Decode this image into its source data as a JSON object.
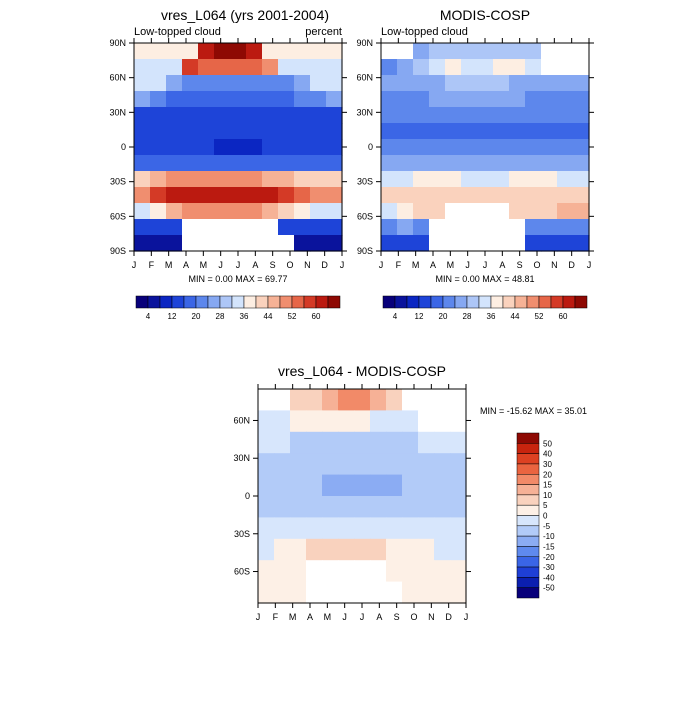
{
  "chart_data": [
    {
      "type": "heatmap",
      "title": "vres_L064 (yrs 2001-2004)",
      "subtitle_left": "Low-topped cloud",
      "subtitle_right": "percent",
      "stats": "MIN =   0.00 MAX =  69.77",
      "x_ticks": [
        "J",
        "F",
        "M",
        "A",
        "M",
        "J",
        "J",
        "A",
        "S",
        "O",
        "N",
        "D",
        "J"
      ],
      "y_ticks": [
        "90N",
        "60N",
        "30N",
        "0",
        "30S",
        "60S",
        "90S"
      ],
      "ylim": [
        90,
        -90
      ],
      "palette": [
        "#08007a",
        "#0a139c",
        "#0b26c2",
        "#1e44d8",
        "#3b66e6",
        "#5d87ec",
        "#86a8f2",
        "#adc6f7",
        "#d3e4fc",
        "#fdeee2",
        "#fad2bd",
        "#f6b296",
        "#f08e6f",
        "#e66648",
        "#d43a26",
        "#bb1a10",
        "#8e0903"
      ],
      "colorbar_labels": [
        "4",
        "12",
        "20",
        "28",
        "36",
        "44",
        "52",
        "60"
      ],
      "values": [
        [
          9,
          9,
          9,
          9,
          15,
          16,
          16,
          15,
          9,
          9,
          9,
          9,
          9
        ],
        [
          8,
          8,
          8,
          14,
          13,
          13,
          13,
          13,
          12,
          8,
          8,
          8,
          8
        ],
        [
          8,
          8,
          6,
          5,
          5,
          5,
          5,
          5,
          5,
          5,
          6,
          8,
          8
        ],
        [
          6,
          5,
          4,
          4,
          4,
          4,
          4,
          4,
          4,
          4,
          5,
          5,
          6
        ],
        [
          3,
          3,
          3,
          3,
          3,
          3,
          3,
          3,
          3,
          3,
          3,
          3,
          3
        ],
        [
          3,
          3,
          3,
          3,
          3,
          3,
          3,
          3,
          3,
          3,
          3,
          3,
          3
        ],
        [
          3,
          3,
          3,
          3,
          3,
          2,
          2,
          2,
          3,
          3,
          3,
          3,
          3
        ],
        [
          4,
          4,
          4,
          4,
          4,
          4,
          4,
          4,
          4,
          4,
          4,
          4,
          4
        ],
        [
          10,
          11,
          12,
          12,
          12,
          12,
          12,
          12,
          11,
          11,
          10,
          10,
          10
        ],
        [
          12,
          14,
          15,
          15,
          15,
          15,
          15,
          15,
          15,
          14,
          13,
          12,
          12
        ],
        [
          8,
          9,
          11,
          12,
          12,
          12,
          12,
          12,
          11,
          10,
          9,
          8,
          8
        ],
        [
          3,
          3,
          3,
          -1,
          -1,
          -1,
          -1,
          -1,
          -1,
          3,
          3,
          3,
          3
        ],
        [
          1,
          1,
          1,
          -1,
          -1,
          -1,
          -1,
          -1,
          -1,
          -1,
          1,
          1,
          1
        ]
      ]
    },
    {
      "type": "heatmap",
      "title": "MODIS-COSP",
      "subtitle_left": "Low-topped cloud",
      "stats": "MIN =   0.00 MAX =  48.81",
      "x_ticks": [
        "J",
        "F",
        "M",
        "A",
        "M",
        "J",
        "J",
        "A",
        "S",
        "O",
        "N",
        "D",
        "J"
      ],
      "y_ticks": [
        "90N",
        "60N",
        "30N",
        "0",
        "30S",
        "60S",
        "90S"
      ],
      "ylim": [
        90,
        -90
      ],
      "palette": [
        "#08007a",
        "#0a139c",
        "#0b26c2",
        "#1e44d8",
        "#3b66e6",
        "#5d87ec",
        "#86a8f2",
        "#adc6f7",
        "#d3e4fc",
        "#fdeee2",
        "#fad2bd",
        "#f6b296",
        "#f08e6f",
        "#e66648",
        "#d43a26",
        "#bb1a10",
        "#8e0903"
      ],
      "colorbar_labels": [
        "4",
        "12",
        "20",
        "28",
        "36",
        "44",
        "52",
        "60"
      ],
      "values": [
        [
          -1,
          -1,
          6,
          7,
          7,
          7,
          7,
          7,
          7,
          7,
          -1,
          -1,
          -1
        ],
        [
          5,
          6,
          7,
          8,
          9,
          8,
          8,
          9,
          9,
          8,
          -1,
          -1,
          -1
        ],
        [
          6,
          6,
          6,
          6,
          7,
          7,
          7,
          7,
          6,
          6,
          6,
          6,
          6
        ],
        [
          5,
          5,
          5,
          6,
          6,
          6,
          6,
          6,
          6,
          5,
          5,
          5,
          5
        ],
        [
          5,
          5,
          5,
          5,
          5,
          5,
          5,
          5,
          5,
          5,
          5,
          5,
          5
        ],
        [
          4,
          4,
          4,
          4,
          4,
          4,
          4,
          4,
          4,
          4,
          4,
          4,
          4
        ],
        [
          5,
          5,
          5,
          5,
          5,
          5,
          5,
          5,
          5,
          5,
          5,
          5,
          5
        ],
        [
          6,
          6,
          6,
          6,
          6,
          6,
          6,
          6,
          6,
          6,
          6,
          6,
          6
        ],
        [
          8,
          8,
          9,
          9,
          9,
          8,
          8,
          8,
          9,
          9,
          9,
          8,
          8
        ],
        [
          10,
          10,
          10,
          10,
          10,
          10,
          10,
          10,
          10,
          10,
          10,
          10,
          10
        ],
        [
          8,
          9,
          10,
          10,
          -1,
          -1,
          -1,
          -1,
          10,
          10,
          10,
          11,
          11
        ],
        [
          5,
          6,
          5,
          -1,
          -1,
          -1,
          -1,
          -1,
          -1,
          5,
          5,
          5,
          5
        ],
        [
          3,
          3,
          3,
          -1,
          -1,
          -1,
          -1,
          -1,
          -1,
          3,
          3,
          3,
          3
        ]
      ]
    },
    {
      "type": "heatmap",
      "title": "vres_L064 - MODIS-COSP",
      "stats": "MIN = -15.62 MAX =  35.01",
      "x_ticks": [
        "J",
        "F",
        "M",
        "A",
        "M",
        "J",
        "J",
        "A",
        "S",
        "O",
        "N",
        "D",
        "J"
      ],
      "y_ticks": [
        "60N",
        "30N",
        "0",
        "30S",
        "60S"
      ],
      "ylim": [
        85,
        -85
      ],
      "palette": [
        "#08007a",
        "#0b1fb0",
        "#1e3fd6",
        "#3a65e6",
        "#5f8aee",
        "#8bacf3",
        "#b2cbf8",
        "#d7e6fc",
        "#fdf0e6",
        "#f9d2be",
        "#f6b196",
        "#f28a68",
        "#ea6440",
        "#dd4122",
        "#c8240e",
        "#8e0903"
      ],
      "colorbar_labels": [
        "50",
        "40",
        "30",
        "20",
        "15",
        "10",
        "5",
        "0",
        "-5",
        "-10",
        "-15",
        "-20",
        "-30",
        "-40",
        "-50"
      ],
      "values": [
        [
          -1,
          -1,
          9,
          9,
          10,
          11,
          11,
          10,
          9,
          -1,
          -1,
          -1,
          -1
        ],
        [
          7,
          7,
          8,
          8,
          8,
          8,
          8,
          7,
          7,
          7,
          -1,
          -1,
          -1
        ],
        [
          7,
          7,
          6,
          6,
          6,
          6,
          6,
          6,
          6,
          6,
          7,
          7,
          7
        ],
        [
          6,
          6,
          6,
          6,
          6,
          6,
          6,
          6,
          6,
          6,
          6,
          6,
          6
        ],
        [
          6,
          6,
          6,
          6,
          5,
          5,
          5,
          5,
          5,
          6,
          6,
          6,
          6
        ],
        [
          6,
          6,
          6,
          6,
          6,
          6,
          6,
          6,
          6,
          6,
          6,
          6,
          6
        ],
        [
          7,
          7,
          7,
          7,
          7,
          7,
          7,
          7,
          7,
          7,
          7,
          7,
          7
        ],
        [
          7,
          8,
          8,
          9,
          9,
          9,
          9,
          9,
          8,
          8,
          8,
          7,
          7
        ],
        [
          8,
          8,
          8,
          -1,
          -1,
          -1,
          -1,
          -1,
          8,
          8,
          8,
          8,
          8
        ],
        [
          8,
          8,
          8,
          -1,
          -1,
          -1,
          -1,
          -1,
          -1,
          8,
          8,
          8,
          8
        ]
      ]
    }
  ]
}
